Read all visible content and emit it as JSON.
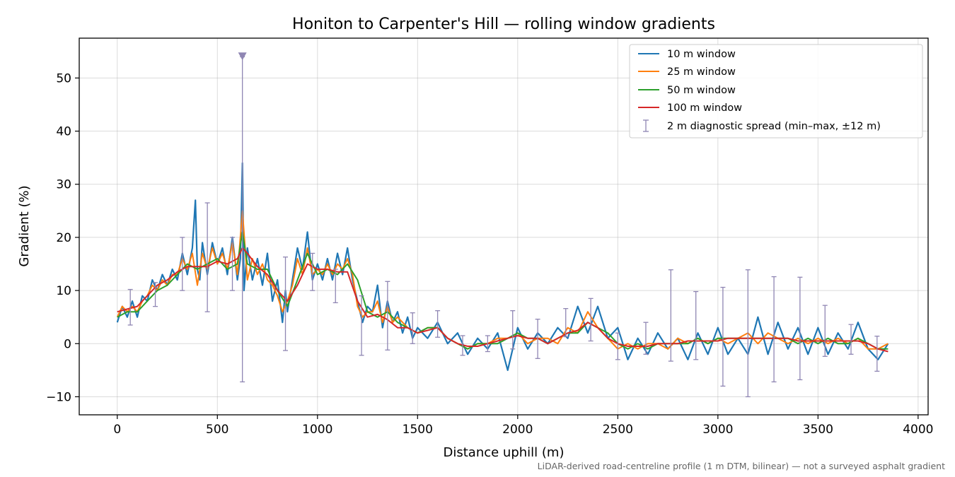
{
  "chart_data": {
    "type": "line",
    "title": "Honiton to Carpenter's Hill — rolling window gradients",
    "xlabel": "Distance uphill (m)",
    "ylabel": "Gradient (%)",
    "xlim": [
      -190,
      4050
    ],
    "ylim": [
      -13.4,
      57.5
    ],
    "xticks": [
      0,
      500,
      1000,
      1500,
      2000,
      2500,
      3000,
      3500,
      4000
    ],
    "yticks": [
      -10,
      0,
      10,
      20,
      30,
      40,
      50
    ],
    "xtick_labels": [
      "0",
      "500",
      "1000",
      "1500",
      "2000",
      "2500",
      "3000",
      "3500",
      "4000"
    ],
    "ytick_labels": [
      "−10",
      "0",
      "10",
      "20",
      "30",
      "40",
      "50"
    ],
    "grid": true,
    "legend_position": "top-right",
    "footnote": "LiDAR-derived road-centreline profile (1 m DTM, bilinear) — not a surveyed asphalt gradient",
    "series": [
      {
        "name": "10 m window",
        "color": "#1f77b4",
        "x": [
          0,
          25,
          50,
          75,
          100,
          125,
          150,
          175,
          200,
          225,
          250,
          275,
          300,
          325,
          350,
          375,
          390,
          400,
          412,
          425,
          450,
          475,
          500,
          525,
          550,
          575,
          600,
          615,
          625,
          633,
          650,
          675,
          700,
          725,
          750,
          775,
          800,
          825,
          840,
          850,
          875,
          900,
          925,
          950,
          975,
          1000,
          1025,
          1050,
          1075,
          1100,
          1125,
          1150,
          1175,
          1200,
          1225,
          1250,
          1275,
          1300,
          1325,
          1350,
          1375,
          1400,
          1425,
          1450,
          1475,
          1500,
          1550,
          1600,
          1650,
          1700,
          1750,
          1800,
          1850,
          1900,
          1950,
          2000,
          2050,
          2100,
          2150,
          2200,
          2250,
          2300,
          2350,
          2400,
          2450,
          2500,
          2550,
          2600,
          2650,
          2700,
          2750,
          2800,
          2850,
          2900,
          2950,
          3000,
          3050,
          3100,
          3150,
          3200,
          3250,
          3300,
          3350,
          3400,
          3450,
          3500,
          3550,
          3600,
          3650,
          3700,
          3750,
          3800,
          3850
        ],
        "y": [
          4,
          7,
          5,
          8,
          5,
          9,
          8,
          12,
          10,
          13,
          11,
          14,
          12,
          17,
          13,
          18,
          27,
          14,
          12,
          19,
          13,
          19,
          15,
          18,
          13,
          20,
          12,
          16,
          34,
          10,
          18,
          12,
          16,
          11,
          17,
          8,
          12,
          4,
          10,
          6,
          12,
          18,
          14,
          21,
          12,
          15,
          12,
          16,
          12,
          17,
          13,
          18,
          12,
          8,
          4,
          7,
          6,
          11,
          3,
          8,
          4,
          6,
          2,
          5,
          1,
          3,
          1,
          4,
          0,
          2,
          -2,
          1,
          -1,
          2,
          -5,
          3,
          -1,
          2,
          0,
          3,
          1,
          7,
          2,
          7,
          1,
          3,
          -3,
          1,
          -2,
          2,
          -1,
          1,
          -3,
          2,
          -2,
          3,
          -2,
          1,
          -2,
          5,
          -2,
          4,
          -1,
          3,
          -2,
          3,
          -2,
          2,
          -1,
          4,
          -1,
          -3,
          0
        ]
      },
      {
        "name": "25 m window",
        "color": "#ff7f0e",
        "x": [
          0,
          25,
          50,
          75,
          100,
          125,
          150,
          175,
          200,
          225,
          250,
          275,
          300,
          325,
          350,
          375,
          400,
          425,
          450,
          475,
          500,
          525,
          550,
          575,
          600,
          625,
          650,
          675,
          700,
          725,
          750,
          775,
          800,
          825,
          850,
          875,
          900,
          925,
          950,
          975,
          1000,
          1025,
          1050,
          1075,
          1100,
          1125,
          1150,
          1175,
          1200,
          1225,
          1250,
          1275,
          1300,
          1325,
          1350,
          1375,
          1400,
          1450,
          1500,
          1550,
          1600,
          1650,
          1700,
          1750,
          1800,
          1850,
          1900,
          1950,
          2000,
          2050,
          2100,
          2150,
          2200,
          2250,
          2300,
          2350,
          2400,
          2450,
          2500,
          2550,
          2600,
          2650,
          2700,
          2750,
          2800,
          2850,
          2900,
          2950,
          3000,
          3050,
          3100,
          3150,
          3200,
          3250,
          3300,
          3350,
          3400,
          3450,
          3500,
          3550,
          3600,
          3650,
          3700,
          3750,
          3800,
          3850
        ],
        "y": [
          5,
          7,
          6,
          7,
          6,
          8,
          9,
          11,
          10,
          12,
          11,
          13,
          13,
          16,
          14,
          17,
          11,
          17,
          14,
          18,
          15,
          17,
          14,
          19,
          13,
          25,
          12,
          16,
          13,
          15,
          12,
          11,
          9,
          6,
          8,
          11,
          16,
          13,
          18,
          13,
          14,
          13,
          15,
          13,
          15,
          14,
          16,
          13,
          7,
          5,
          6,
          6,
          8,
          4,
          7,
          4,
          5,
          3,
          2,
          3,
          3,
          1,
          0,
          -1,
          0,
          0,
          1,
          1,
          2,
          0,
          1,
          1,
          0,
          3,
          2,
          6,
          3,
          1,
          -1,
          0,
          -1,
          0,
          0,
          -1,
          1,
          0,
          1,
          0,
          1,
          0,
          1,
          2,
          0,
          2,
          1,
          0,
          1,
          0,
          1,
          0,
          1,
          0,
          1,
          -1,
          -1,
          0
        ]
      },
      {
        "name": "50 m window",
        "color": "#2ca02c",
        "x": [
          0,
          50,
          100,
          150,
          200,
          250,
          300,
          350,
          400,
          450,
          500,
          550,
          600,
          625,
          650,
          700,
          750,
          800,
          850,
          900,
          950,
          1000,
          1050,
          1100,
          1150,
          1200,
          1250,
          1300,
          1350,
          1400,
          1450,
          1500,
          1550,
          1600,
          1650,
          1700,
          1750,
          1800,
          1850,
          1900,
          1950,
          2000,
          2050,
          2100,
          2150,
          2200,
          2250,
          2300,
          2350,
          2400,
          2450,
          2500,
          2550,
          2600,
          2650,
          2700,
          2750,
          2800,
          2850,
          2900,
          2950,
          3000,
          3050,
          3100,
          3150,
          3200,
          3250,
          3300,
          3350,
          3400,
          3450,
          3500,
          3550,
          3600,
          3650,
          3700,
          3750,
          3800,
          3850
        ],
        "y": [
          5,
          6,
          6,
          8,
          10,
          11,
          13,
          15,
          14,
          15,
          16,
          14,
          15,
          21,
          15,
          14,
          14,
          10,
          7,
          12,
          17,
          13,
          14,
          13,
          15,
          12,
          6,
          5,
          6,
          4,
          3,
          2,
          3,
          3,
          1,
          0,
          -1,
          0,
          0,
          0,
          1,
          2,
          1,
          1,
          0,
          1,
          2,
          2,
          4,
          3,
          2,
          0,
          -1,
          0,
          -1,
          0,
          0,
          0,
          0,
          1,
          0,
          1,
          1,
          1,
          1,
          1,
          1,
          1,
          1,
          0,
          1,
          0,
          1,
          0,
          0,
          1,
          0,
          -1,
          -1
        ]
      },
      {
        "name": "100 m window",
        "color": "#d62728",
        "x": [
          0,
          50,
          100,
          150,
          200,
          250,
          300,
          350,
          400,
          450,
          500,
          550,
          600,
          625,
          650,
          700,
          750,
          800,
          850,
          900,
          950,
          1000,
          1050,
          1100,
          1150,
          1200,
          1250,
          1300,
          1350,
          1400,
          1450,
          1500,
          1550,
          1600,
          1650,
          1700,
          1750,
          1800,
          1850,
          1900,
          1950,
          2000,
          2050,
          2100,
          2150,
          2200,
          2250,
          2300,
          2350,
          2400,
          2450,
          2500,
          2550,
          2600,
          2650,
          2700,
          2750,
          2800,
          2850,
          2900,
          2950,
          3000,
          3050,
          3100,
          3150,
          3200,
          3250,
          3300,
          3350,
          3400,
          3450,
          3500,
          3550,
          3600,
          3650,
          3700,
          3750,
          3800,
          3850
        ],
        "y": [
          6,
          6.5,
          7,
          9,
          11,
          12,
          13.5,
          14.5,
          14.5,
          14.5,
          15.5,
          15,
          16,
          18,
          17,
          14.5,
          13,
          10,
          8,
          11,
          15,
          14,
          14,
          13.5,
          13.5,
          8,
          5,
          5.5,
          4.5,
          3,
          3,
          2,
          2.5,
          3,
          1,
          0,
          -0.5,
          -0.5,
          0,
          0.5,
          1,
          1.5,
          1,
          1,
          0,
          1,
          2,
          2.5,
          4,
          3,
          1,
          0,
          -0.5,
          -0.5,
          -0.5,
          0,
          0,
          0,
          0.5,
          0.5,
          0.5,
          0.5,
          1,
          1,
          1,
          1,
          1,
          1,
          1,
          0.5,
          0.5,
          0.5,
          0.5,
          0.5,
          0.5,
          0.5,
          0,
          -1,
          -1.5
        ]
      }
    ],
    "errorbars": {
      "name": "2 m diagnostic spread (min–max, ±12 m)",
      "color": "#8f86b3",
      "points": [
        {
          "x": 65,
          "y": 6,
          "ymin": 3.5,
          "ymax": 10.2
        },
        {
          "x": 190,
          "y": 10,
          "ymin": 7,
          "ymax": 11.5
        },
        {
          "x": 325,
          "y": 14,
          "ymin": 10,
          "ymax": 20
        },
        {
          "x": 450,
          "y": 14,
          "ymin": 6,
          "ymax": 26.5
        },
        {
          "x": 575,
          "y": 13,
          "ymin": 10,
          "ymax": 20
        },
        {
          "x": 625,
          "y": 18,
          "ymin": -7.2,
          "ymax": 54
        },
        {
          "x": 840,
          "y": 7,
          "ymin": -1.3,
          "ymax": 16.3
        },
        {
          "x": 975,
          "y": 14,
          "ymin": 10,
          "ymax": 17
        },
        {
          "x": 1090,
          "y": 13,
          "ymin": 7.7,
          "ymax": 14
        },
        {
          "x": 1220,
          "y": 6,
          "ymin": -2.2,
          "ymax": 9
        },
        {
          "x": 1350,
          "y": 5,
          "ymin": -1.2,
          "ymax": 11.7
        },
        {
          "x": 1475,
          "y": 3,
          "ymin": 0,
          "ymax": 5.8
        },
        {
          "x": 1600,
          "y": 3,
          "ymin": 1.2,
          "ymax": 6.2
        },
        {
          "x": 1725,
          "y": 0,
          "ymin": -2.2,
          "ymax": 1.5
        },
        {
          "x": 1850,
          "y": -0.5,
          "ymin": -1.5,
          "ymax": 1.5
        },
        {
          "x": 1975,
          "y": 1,
          "ymin": -1,
          "ymax": 6.2
        },
        {
          "x": 2100,
          "y": 1,
          "ymin": -2.8,
          "ymax": 4.6
        },
        {
          "x": 2240,
          "y": 2,
          "ymin": 1.3,
          "ymax": 6.6
        },
        {
          "x": 2365,
          "y": 4,
          "ymin": 0.5,
          "ymax": 8.5
        },
        {
          "x": 2500,
          "y": 0,
          "ymin": -3,
          "ymax": 2
        },
        {
          "x": 2640,
          "y": 0,
          "ymin": -2,
          "ymax": 4
        },
        {
          "x": 2765,
          "y": 0,
          "ymin": -3.3,
          "ymax": 13.9
        },
        {
          "x": 2890,
          "y": 0.5,
          "ymin": -3,
          "ymax": 9.8
        },
        {
          "x": 3025,
          "y": 1,
          "ymin": -8,
          "ymax": 10.6
        },
        {
          "x": 3150,
          "y": 1,
          "ymin": -10,
          "ymax": 13.9
        },
        {
          "x": 3280,
          "y": 1,
          "ymin": -7.2,
          "ymax": 12.6
        },
        {
          "x": 3410,
          "y": 1,
          "ymin": -6.8,
          "ymax": 12.5
        },
        {
          "x": 3535,
          "y": 0.5,
          "ymin": -2.4,
          "ymax": 7.2
        },
        {
          "x": 3665,
          "y": 1,
          "ymin": -2,
          "ymax": 3.6
        },
        {
          "x": 3795,
          "y": -1,
          "ymin": -5.2,
          "ymax": 1.4
        }
      ]
    },
    "clipped_marker": {
      "x": 625,
      "y": 54,
      "shape": "triangle-down",
      "color": "#8f86b3"
    }
  }
}
